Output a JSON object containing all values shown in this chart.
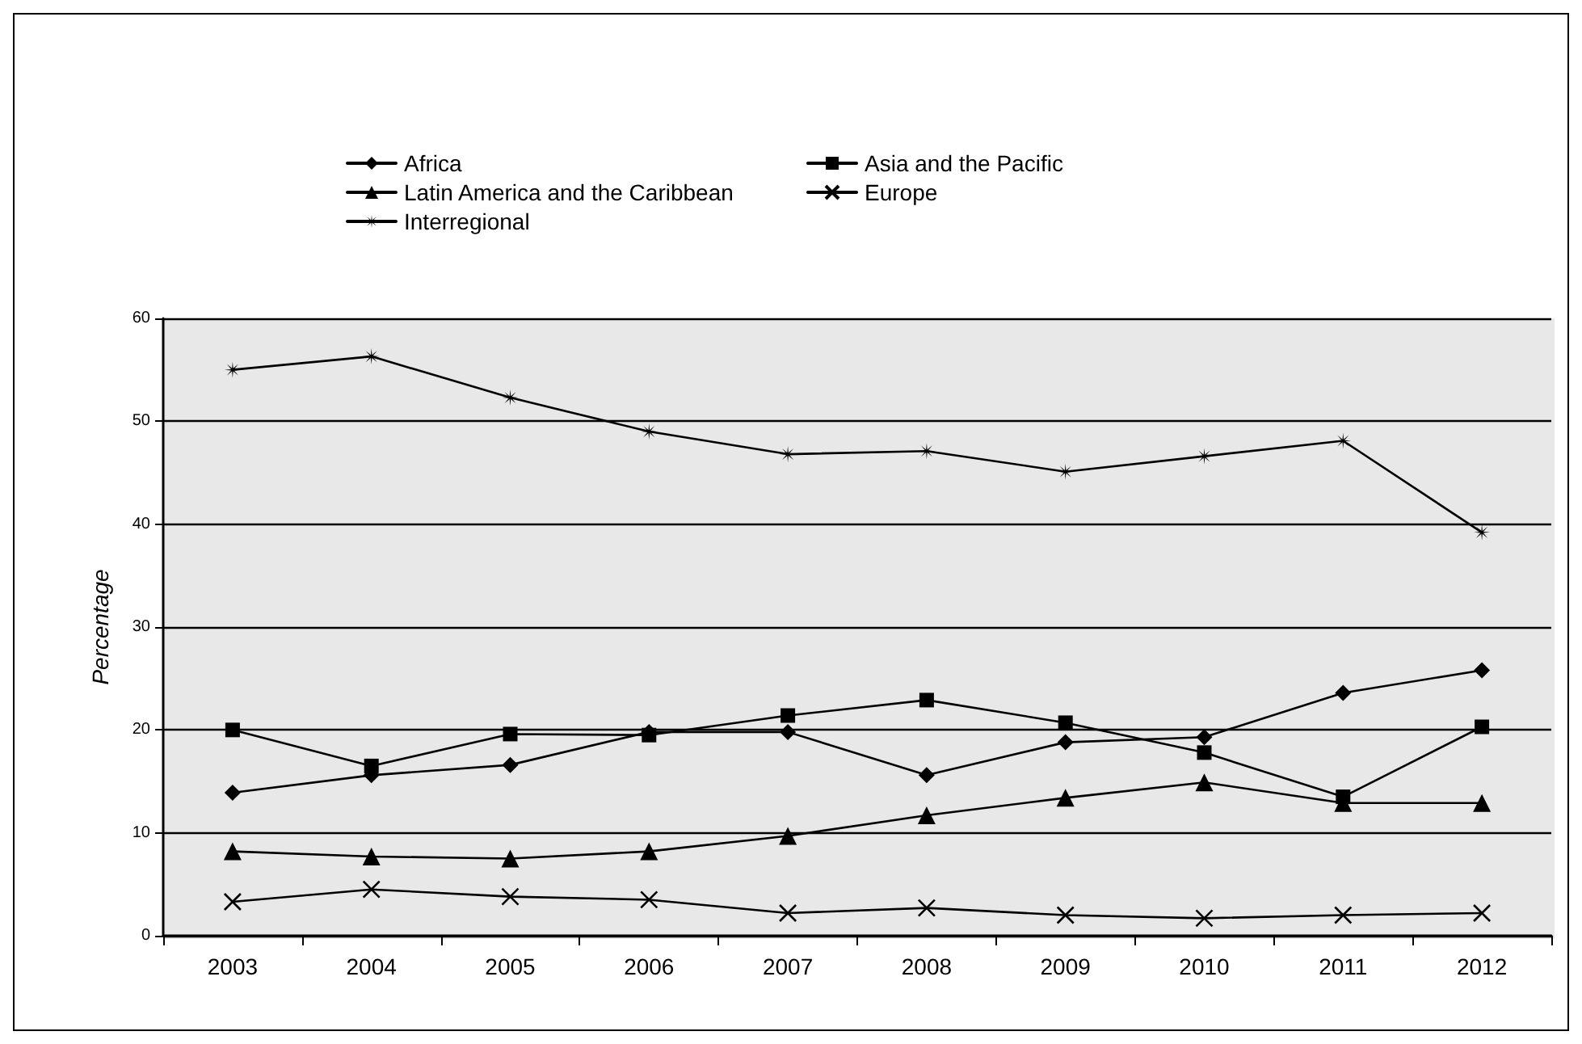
{
  "chart_data": {
    "type": "line",
    "ylabel": "Percentage",
    "categories": [
      "2003",
      "2004",
      "2005",
      "2006",
      "2007",
      "2008",
      "2009",
      "2010",
      "2011",
      "2012"
    ],
    "series": [
      {
        "name": "Africa",
        "color": "#000000",
        "marker": "diamond",
        "values": [
          13.9,
          15.6,
          16.6,
          19.8,
          19.8,
          15.6,
          18.8,
          19.3,
          23.6,
          25.8
        ]
      },
      {
        "name": "Asia and the Pacific",
        "color": "#000000",
        "marker": "square",
        "values": [
          20,
          16.5,
          19.6,
          19.5,
          21.4,
          22.9,
          20.7,
          17.8,
          13.5,
          20.3
        ]
      },
      {
        "name": "Latin America and the Caribbean",
        "color": "#000000",
        "marker": "triangle",
        "values": [
          8.2,
          7.7,
          7.5,
          8.2,
          9.7,
          11.7,
          13.4,
          14.9,
          12.9,
          12.9
        ]
      },
      {
        "name": "Europe",
        "color": "#000000",
        "marker": "cross",
        "values": [
          3.3,
          4.5,
          3.8,
          3.5,
          2.2,
          2.7,
          2.0,
          1.7,
          2.0,
          2.2
        ]
      },
      {
        "name": "Interregional",
        "color": "#000000",
        "marker": "star",
        "values": [
          55,
          56.3,
          52.3,
          49,
          46.8,
          47.1,
          45.1,
          46.6,
          48.1,
          39.2
        ]
      }
    ],
    "ylim": [
      0,
      60
    ],
    "yticks": [
      0,
      10,
      20,
      30,
      40,
      50,
      60
    ],
    "grid": "y",
    "legend": "top",
    "line_style": "solid"
  }
}
